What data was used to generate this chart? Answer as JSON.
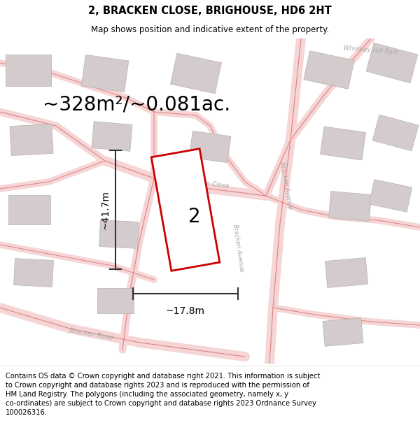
{
  "title": "2, BRACKEN CLOSE, BRIGHOUSE, HD6 2HT",
  "subtitle": "Map shows position and indicative extent of the property.",
  "footer": "Contains OS data © Crown copyright and database right 2021. This information is subject\nto Crown copyright and database rights 2023 and is reproduced with the permission of\nHM Land Registry. The polygons (including the associated geometry, namely x, y\nco-ordinates) are subject to Crown copyright and database rights 2023 Ordnance Survey\n100026316.",
  "area_label": "~328m²/~0.081ac.",
  "width_label": "~17.8m",
  "height_label": "~41.7m",
  "plot_number": "2",
  "map_bg": "#ffffff",
  "road_color_fill": "#f5d5d5",
  "road_color_line": "#e08080",
  "building_color": "#d4cccc",
  "building_edge": "#b8b0b0",
  "red_outline": "#cc0000",
  "dim_line_color": "#333333",
  "street_label_color": "#aaaaaa",
  "park_label_color": "#aaaaaa",
  "title_fontsize": 10.5,
  "subtitle_fontsize": 8.5,
  "footer_fontsize": 7.2,
  "area_fontsize": 20,
  "dim_fontsize": 10,
  "plot_label_fontsize": 20,
  "street_fontsize": 6.5
}
